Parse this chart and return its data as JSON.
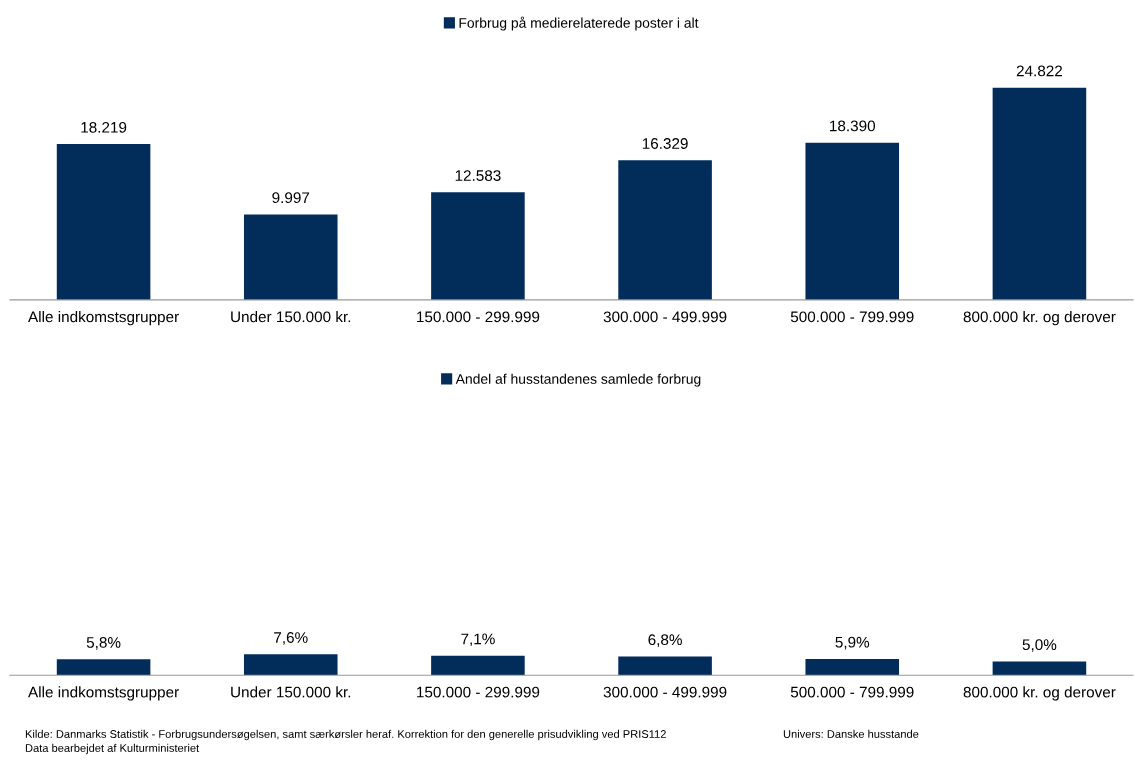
{
  "chart_data": [
    {
      "type": "bar",
      "categories": [
        "Alle indkomstsgrupper",
        "Under 150.000 kr.",
        "150.000 - 299.999",
        "300.000 - 499.999",
        "500.000 - 799.999",
        "800.000 kr. og derover"
      ],
      "series": [
        {
          "name": "Forbrug på medierelaterede poster i alt",
          "color": "#022d5b",
          "values": [
            18219,
            9997,
            12583,
            16329,
            18390,
            24822
          ],
          "value_labels": [
            "18.219",
            "9.997",
            "12.583",
            "16.329",
            "18.390",
            "24.822"
          ]
        }
      ],
      "legend": "top",
      "grid": false
    },
    {
      "type": "bar",
      "categories": [
        "Alle indkomstsgrupper",
        "Under 150.000 kr.",
        "150.000 - 299.999",
        "300.000 - 499.999",
        "500.000 - 799.999",
        "800.000 kr. og derover"
      ],
      "series": [
        {
          "name": "Andel af husstandenes samlede forbrug",
          "color": "#022d5b",
          "values": [
            5.8,
            7.6,
            7.1,
            6.8,
            5.9,
            5.0
          ],
          "value_labels": [
            "5,8%",
            "7,6%",
            "7,1%",
            "6,8%",
            "5,9%",
            "5,0%"
          ]
        }
      ],
      "legend": "top",
      "grid": false,
      "annotations": [
        "Kilde: Danmarks Statistik - Forbrugsundersøgelsen, samt særkørsler heraf. Korrektion for den generelle prisudvikling ved PRIS112",
        "Data bearbejdet af Kulturministeriet",
        "Univers: Danske husstande"
      ]
    }
  ]
}
